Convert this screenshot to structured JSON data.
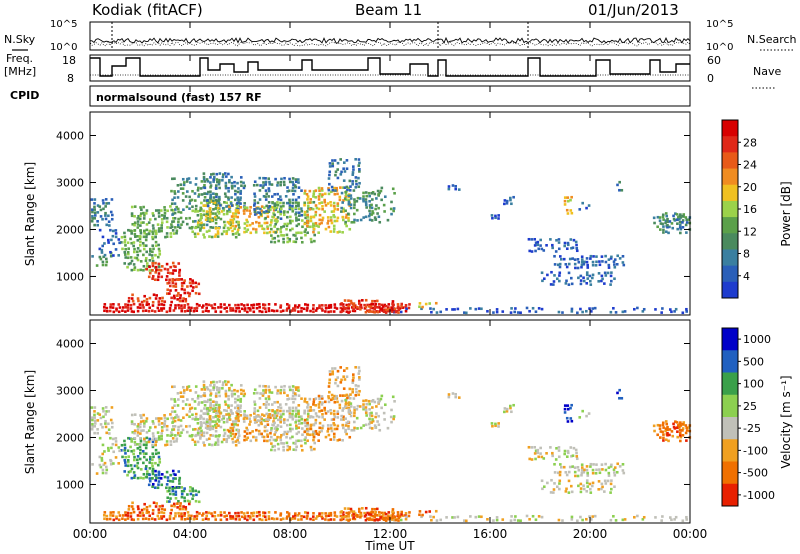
{
  "header": {
    "station": "Kodiak (fitACF)",
    "beam": "Beam 11",
    "date": "01/Jun/2013"
  },
  "left_labels": {
    "nsky": "N.Sky",
    "freq": "Freq.",
    "mhz": "[MHz]",
    "cpid": "CPID"
  },
  "right_labels": {
    "nsearch": "N.Search",
    "nave": "Nave"
  },
  "cpid_text": "normalsound (fast) 157 RF",
  "noise_axis": {
    "left_ticks": [
      "10^5",
      "10^0"
    ],
    "right_ticks": [
      "10^5",
      "10^0"
    ]
  },
  "freq_axis": {
    "left_ticks": [
      "18",
      "8"
    ],
    "right_ticks": [
      "60",
      "0"
    ]
  },
  "colors": {
    "power": [
      "#1e3ccd",
      "#2a5fb8",
      "#3a7fa0",
      "#4a8a5e",
      "#5ba04a",
      "#9bd24a",
      "#f0c020",
      "#f08c20",
      "#e85a18",
      "#e02818",
      "#d80000"
    ],
    "velocity": [
      "#0000c8",
      "#2060c0",
      "#3aa04a",
      "#8cd050",
      "#c0c0b8",
      "#f0a020",
      "#f07000",
      "#e82000"
    ]
  },
  "chart_data": [
    {
      "type": "heatmap",
      "title": "",
      "xlabel": "",
      "ylabel": "Slant Range [km]",
      "x_ticks": [
        "00:00",
        "04:00",
        "08:00",
        "12:00",
        "16:00",
        "20:00",
        "00:00"
      ],
      "y_ticks": [
        "1000",
        "2000",
        "3000",
        "4000"
      ],
      "ylim": [
        180,
        4500
      ],
      "colorbar": {
        "label": "Power [dB]",
        "ticks": [
          "4",
          "8",
          "12",
          "16",
          "20",
          "24",
          "28"
        ],
        "range": [
          0,
          30
        ]
      }
    },
    {
      "type": "heatmap",
      "title": "",
      "xlabel": "Time UT",
      "ylabel": "Slant Range [km]",
      "x_ticks": [
        "00:00",
        "04:00",
        "08:00",
        "12:00",
        "16:00",
        "20:00",
        "00:00"
      ],
      "y_ticks": [
        "1000",
        "2000",
        "3000",
        "4000"
      ],
      "ylim": [
        180,
        4500
      ],
      "colorbar": {
        "label": "Velocity [m s⁻¹]",
        "ticks": [
          "1000",
          "500",
          "100",
          "25",
          "-25",
          "-100",
          "-500",
          "-1000"
        ]
      }
    }
  ]
}
